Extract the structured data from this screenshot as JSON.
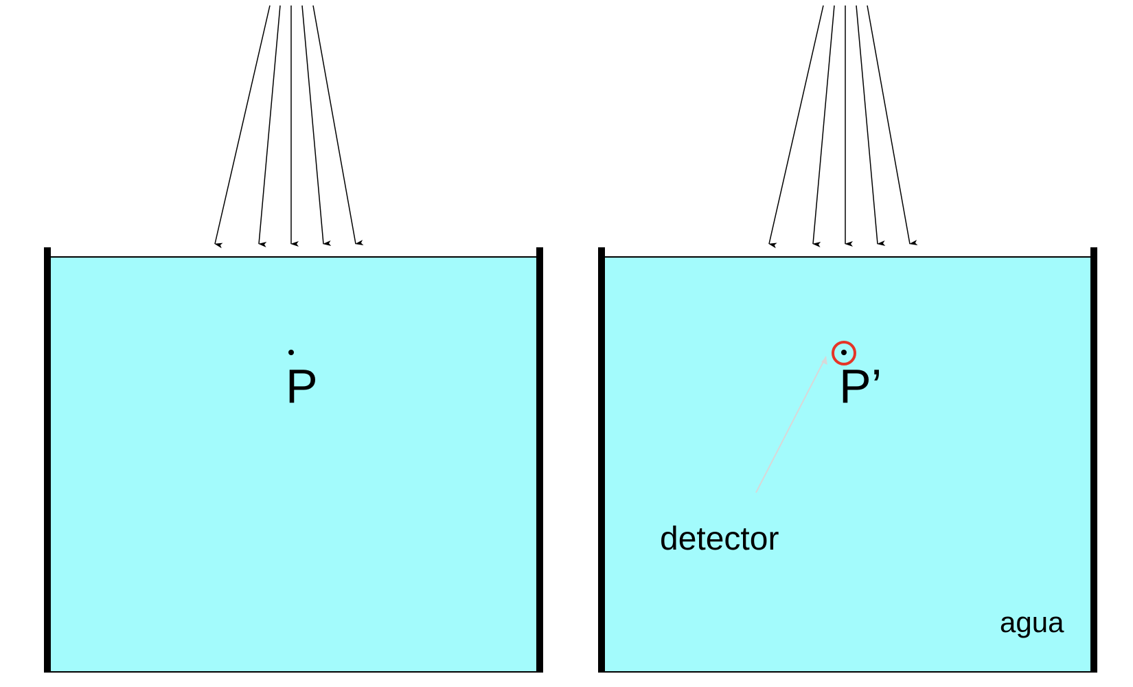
{
  "diagram": {
    "left_panel": {
      "point_label": "P"
    },
    "right_panel": {
      "point_label": "P’",
      "detector_label": "detector",
      "medium_label": "agua"
    }
  },
  "colors": {
    "water": "#a3fbfc",
    "walls": "#000000",
    "beam": "#000000",
    "detector_ring": "#e53528",
    "pointer_line": "#d8d8d8",
    "background": "#ffffff"
  }
}
